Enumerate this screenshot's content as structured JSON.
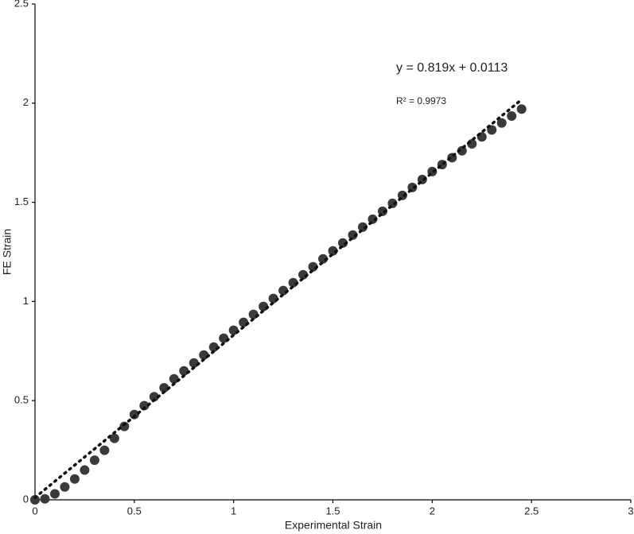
{
  "chart_data": {
    "type": "scatter",
    "x_label": "Experimental Strain",
    "y_label": "FE Strain",
    "annotations": [
      "y = 0.819x + 0.0113",
      "R² = 0.9973"
    ],
    "trendline": {
      "slope": 0.819,
      "intercept": 0.0113
    },
    "color": "#3a3a3a",
    "x": [
      0,
      0.05,
      0.1,
      0.15,
      0.2,
      0.25,
      0.3,
      0.35,
      0.4,
      0.45,
      0.5,
      0.55,
      0.6,
      0.65,
      0.7,
      0.75,
      0.8,
      0.85,
      0.9,
      0.95,
      1.0,
      1.05,
      1.1,
      1.15,
      1.2,
      1.25,
      1.3,
      1.35,
      1.4,
      1.45,
      1.5,
      1.55,
      1.6,
      1.65,
      1.7,
      1.75,
      1.8,
      1.85,
      1.9,
      1.95,
      2.0,
      2.05,
      2.1,
      2.15,
      2.2,
      2.25,
      2.3,
      2.35,
      2.4,
      2.45
    ],
    "values": [
      0,
      0.005,
      0.03,
      0.065,
      0.105,
      0.15,
      0.2,
      0.25,
      0.31,
      0.37,
      0.43,
      0.475,
      0.52,
      0.565,
      0.61,
      0.65,
      0.69,
      0.73,
      0.77,
      0.815,
      0.855,
      0.895,
      0.935,
      0.975,
      1.015,
      1.055,
      1.095,
      1.135,
      1.175,
      1.215,
      1.255,
      1.295,
      1.335,
      1.375,
      1.415,
      1.455,
      1.495,
      1.535,
      1.575,
      1.615,
      1.655,
      1.69,
      1.725,
      1.76,
      1.795,
      1.83,
      1.865,
      1.9,
      1.935,
      1.97
    ],
    "xlim": [
      0,
      3
    ],
    "xticks": [
      0,
      0.5,
      1,
      1.5,
      2,
      2.5,
      3
    ],
    "ylim": [
      0,
      2.5
    ],
    "yticks": [
      0,
      0.5,
      1,
      1.5,
      2,
      2.5
    ],
    "grid": false
  }
}
